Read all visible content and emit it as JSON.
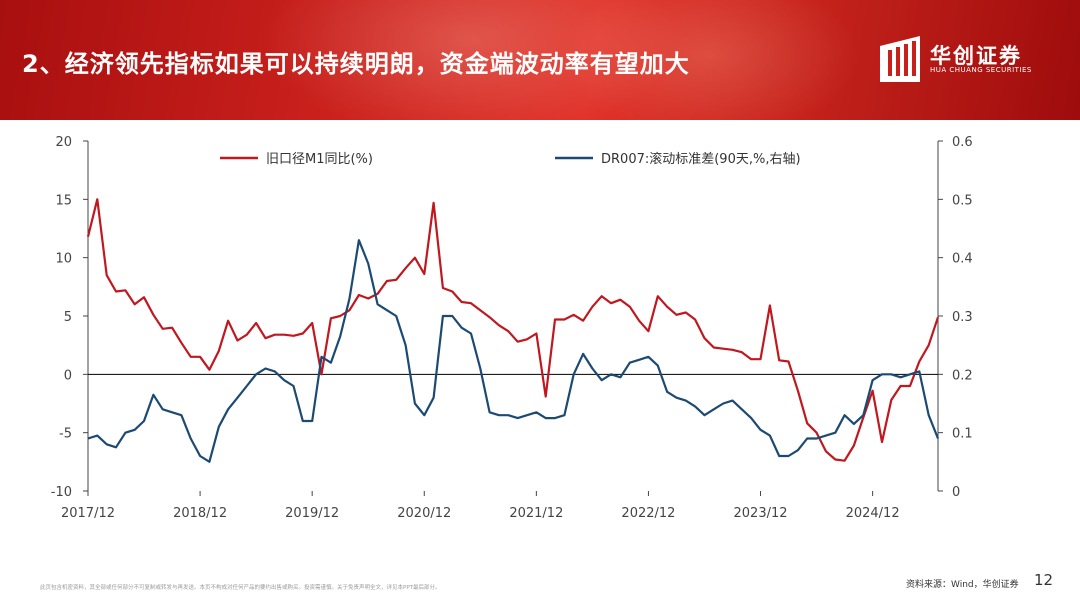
{
  "header": {
    "title": "2、经济领先指标如果可以持续明朗，资金端波动率有望加大",
    "logo_cn": "华创证券",
    "logo_en": "HUA CHUANG SECURITIES"
  },
  "footer": {
    "source": "资料来源：Wind，华创证券",
    "page_number": "12",
    "disclaimer": "此页包含机密资料，其全部或任何部分不可复制或转发与再发送。本页不构成对任何产品的要约出售或购买。投资需谨慎。关于免责声明全文，详见本PPT最后部分。"
  },
  "colors": {
    "m1": "#c0181e",
    "dr007": "#1c4a73",
    "axis": "#444444"
  },
  "chart_data": {
    "type": "line",
    "x_ticks": [
      "2017/12",
      "2018/12",
      "2019/12",
      "2020/12",
      "2021/12",
      "2022/12",
      "2023/12",
      "2024/12"
    ],
    "x_range": [
      "2017-12",
      "2025-07"
    ],
    "y_left": {
      "range": [
        -10,
        20
      ],
      "ticks": [
        "20",
        "15",
        "10",
        "5",
        "0",
        "-5",
        "-10"
      ]
    },
    "y_right": {
      "range": [
        0,
        0.6
      ],
      "ticks": [
        "0.6",
        "0.5",
        "0.4",
        "0.3",
        "0.2",
        "0.1",
        "0"
      ]
    },
    "series": [
      {
        "name": "旧口径M1同比(%)",
        "axis": "left",
        "points": [
          [
            "2017-12",
            11.8
          ],
          [
            "2018-01",
            15.0
          ],
          [
            "2018-02",
            8.5
          ],
          [
            "2018-03",
            7.1
          ],
          [
            "2018-04",
            7.2
          ],
          [
            "2018-05",
            6.0
          ],
          [
            "2018-06",
            6.6
          ],
          [
            "2018-07",
            5.1
          ],
          [
            "2018-08",
            3.9
          ],
          [
            "2018-09",
            4.0
          ],
          [
            "2018-10",
            2.7
          ],
          [
            "2018-11",
            1.5
          ],
          [
            "2018-12",
            1.5
          ],
          [
            "2019-01",
            0.4
          ],
          [
            "2019-02",
            2.0
          ],
          [
            "2019-03",
            4.6
          ],
          [
            "2019-04",
            2.9
          ],
          [
            "2019-05",
            3.4
          ],
          [
            "2019-06",
            4.4
          ],
          [
            "2019-07",
            3.1
          ],
          [
            "2019-08",
            3.4
          ],
          [
            "2019-09",
            3.4
          ],
          [
            "2019-10",
            3.3
          ],
          [
            "2019-11",
            3.5
          ],
          [
            "2019-12",
            4.4
          ],
          [
            "2020-01",
            0.0
          ],
          [
            "2020-02",
            4.8
          ],
          [
            "2020-03",
            5.0
          ],
          [
            "2020-04",
            5.5
          ],
          [
            "2020-05",
            6.8
          ],
          [
            "2020-06",
            6.5
          ],
          [
            "2020-07",
            6.9
          ],
          [
            "2020-08",
            8.0
          ],
          [
            "2020-09",
            8.1
          ],
          [
            "2020-10",
            9.1
          ],
          [
            "2020-11",
            10.0
          ],
          [
            "2020-12",
            8.6
          ],
          [
            "2021-01",
            14.7
          ],
          [
            "2021-02",
            7.4
          ],
          [
            "2021-03",
            7.1
          ],
          [
            "2021-04",
            6.2
          ],
          [
            "2021-05",
            6.1
          ],
          [
            "2021-06",
            5.5
          ],
          [
            "2021-07",
            4.9
          ],
          [
            "2021-08",
            4.2
          ],
          [
            "2021-09",
            3.7
          ],
          [
            "2021-10",
            2.8
          ],
          [
            "2021-11",
            3.0
          ],
          [
            "2021-12",
            3.5
          ],
          [
            "2022-01",
            -1.9
          ],
          [
            "2022-02",
            4.7
          ],
          [
            "2022-03",
            4.7
          ],
          [
            "2022-04",
            5.1
          ],
          [
            "2022-05",
            4.6
          ],
          [
            "2022-06",
            5.8
          ],
          [
            "2022-07",
            6.7
          ],
          [
            "2022-08",
            6.1
          ],
          [
            "2022-09",
            6.4
          ],
          [
            "2022-10",
            5.8
          ],
          [
            "2022-11",
            4.6
          ],
          [
            "2022-12",
            3.7
          ],
          [
            "2023-01",
            6.7
          ],
          [
            "2023-02",
            5.8
          ],
          [
            "2023-03",
            5.1
          ],
          [
            "2023-04",
            5.3
          ],
          [
            "2023-05",
            4.7
          ],
          [
            "2023-06",
            3.1
          ],
          [
            "2023-07",
            2.3
          ],
          [
            "2023-08",
            2.2
          ],
          [
            "2023-09",
            2.1
          ],
          [
            "2023-10",
            1.9
          ],
          [
            "2023-11",
            1.3
          ],
          [
            "2023-12",
            1.3
          ],
          [
            "2024-01",
            5.9
          ],
          [
            "2024-02",
            1.2
          ],
          [
            "2024-03",
            1.1
          ],
          [
            "2024-04",
            -1.4
          ],
          [
            "2024-05",
            -4.2
          ],
          [
            "2024-06",
            -5.0
          ],
          [
            "2024-07",
            -6.6
          ],
          [
            "2024-08",
            -7.3
          ],
          [
            "2024-09",
            -7.4
          ],
          [
            "2024-10",
            -6.1
          ],
          [
            "2024-11",
            -3.7
          ],
          [
            "2024-12",
            -1.4
          ],
          [
            "2025-01",
            -5.8
          ],
          [
            "2025-02",
            -2.2
          ],
          [
            "2025-03",
            -1.0
          ],
          [
            "2025-04",
            -1.0
          ],
          [
            "2025-05",
            1.1
          ],
          [
            "2025-06",
            2.5
          ],
          [
            "2025-07",
            4.9
          ]
        ]
      },
      {
        "name": "DR007:滚动标准差(90天,%,右轴)",
        "axis": "right",
        "points": [
          [
            "2017-12",
            0.09
          ],
          [
            "2018-01",
            0.095
          ],
          [
            "2018-02",
            0.08
          ],
          [
            "2018-03",
            0.075
          ],
          [
            "2018-04",
            0.1
          ],
          [
            "2018-05",
            0.105
          ],
          [
            "2018-06",
            0.12
          ],
          [
            "2018-07",
            0.165
          ],
          [
            "2018-08",
            0.14
          ],
          [
            "2018-09",
            0.135
          ],
          [
            "2018-10",
            0.13
          ],
          [
            "2018-11",
            0.09
          ],
          [
            "2018-12",
            0.06
          ],
          [
            "2019-01",
            0.05
          ],
          [
            "2019-02",
            0.11
          ],
          [
            "2019-03",
            0.14
          ],
          [
            "2019-04",
            0.16
          ],
          [
            "2019-05",
            0.18
          ],
          [
            "2019-06",
            0.2
          ],
          [
            "2019-07",
            0.21
          ],
          [
            "2019-08",
            0.205
          ],
          [
            "2019-09",
            0.19
          ],
          [
            "2019-10",
            0.18
          ],
          [
            "2019-11",
            0.12
          ],
          [
            "2019-12",
            0.12
          ],
          [
            "2020-01",
            0.23
          ],
          [
            "2020-02",
            0.22
          ],
          [
            "2020-03",
            0.265
          ],
          [
            "2020-04",
            0.33
          ],
          [
            "2020-05",
            0.43
          ],
          [
            "2020-06",
            0.39
          ],
          [
            "2020-07",
            0.32
          ],
          [
            "2020-08",
            0.31
          ],
          [
            "2020-09",
            0.3
          ],
          [
            "2020-10",
            0.25
          ],
          [
            "2020-11",
            0.15
          ],
          [
            "2020-12",
            0.13
          ],
          [
            "2021-01",
            0.16
          ],
          [
            "2021-02",
            0.3
          ],
          [
            "2021-03",
            0.3
          ],
          [
            "2021-04",
            0.28
          ],
          [
            "2021-05",
            0.27
          ],
          [
            "2021-06",
            0.21
          ],
          [
            "2021-07",
            0.135
          ],
          [
            "2021-08",
            0.13
          ],
          [
            "2021-09",
            0.13
          ],
          [
            "2021-10",
            0.125
          ],
          [
            "2021-11",
            0.13
          ],
          [
            "2021-12",
            0.135
          ],
          [
            "2022-01",
            0.125
          ],
          [
            "2022-02",
            0.125
          ],
          [
            "2022-03",
            0.13
          ],
          [
            "2022-04",
            0.2
          ],
          [
            "2022-05",
            0.235
          ],
          [
            "2022-06",
            0.21
          ],
          [
            "2022-07",
            0.19
          ],
          [
            "2022-08",
            0.2
          ],
          [
            "2022-09",
            0.195
          ],
          [
            "2022-10",
            0.22
          ],
          [
            "2022-11",
            0.225
          ],
          [
            "2022-12",
            0.23
          ],
          [
            "2023-01",
            0.215
          ],
          [
            "2023-02",
            0.17
          ],
          [
            "2023-03",
            0.16
          ],
          [
            "2023-04",
            0.155
          ],
          [
            "2023-05",
            0.145
          ],
          [
            "2023-06",
            0.13
          ],
          [
            "2023-07",
            0.14
          ],
          [
            "2023-08",
            0.15
          ],
          [
            "2023-09",
            0.155
          ],
          [
            "2023-10",
            0.14
          ],
          [
            "2023-11",
            0.125
          ],
          [
            "2023-12",
            0.105
          ],
          [
            "2024-01",
            0.095
          ],
          [
            "2024-02",
            0.06
          ],
          [
            "2024-03",
            0.06
          ],
          [
            "2024-04",
            0.07
          ],
          [
            "2024-05",
            0.09
          ],
          [
            "2024-06",
            0.09
          ],
          [
            "2024-07",
            0.095
          ],
          [
            "2024-08",
            0.1
          ],
          [
            "2024-09",
            0.13
          ],
          [
            "2024-10",
            0.115
          ],
          [
            "2024-11",
            0.13
          ],
          [
            "2024-12",
            0.19
          ],
          [
            "2025-01",
            0.2
          ],
          [
            "2025-02",
            0.2
          ],
          [
            "2025-03",
            0.195
          ],
          [
            "2025-04",
            0.2
          ],
          [
            "2025-05",
            0.205
          ],
          [
            "2025-06",
            0.13
          ],
          [
            "2025-07",
            0.09
          ]
        ]
      }
    ]
  }
}
